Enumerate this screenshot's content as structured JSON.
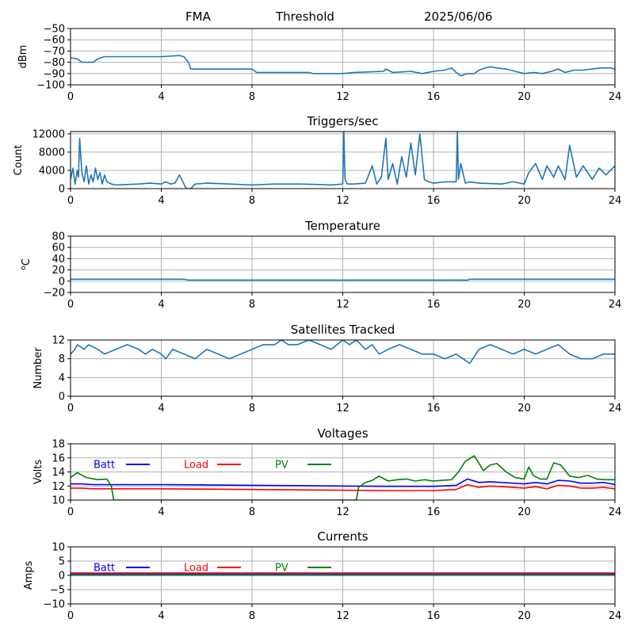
{
  "header": {
    "station": "FMA",
    "mode": "Threshold",
    "date": "2025/06/06"
  },
  "chart_data": [
    {
      "type": "line",
      "title": "",
      "xlabel": "",
      "ylabel": "dBm",
      "xlim": [
        0,
        24
      ],
      "ylim": [
        -100,
        -50
      ],
      "xticks": [
        0,
        4,
        8,
        12,
        16,
        20,
        24
      ],
      "yticks": [
        -50,
        -60,
        -70,
        -80,
        -90,
        -100
      ],
      "grid": true,
      "series": [
        {
          "color": "#1f77b4",
          "x": [
            0,
            0.3,
            0.5,
            1.0,
            1.2,
            1.5,
            4.0,
            4.8,
            5.0,
            5.2,
            5.3,
            8.0,
            8.2,
            10.5,
            10.7,
            12.0,
            12.5,
            13.8,
            13.9,
            14.2,
            15.0,
            15.5,
            16.0,
            16.5,
            16.8,
            17.0,
            17.2,
            17.5,
            17.8,
            18.0,
            18.3,
            18.5,
            18.8,
            19.2,
            19.6,
            20.0,
            20.4,
            20.8,
            21.2,
            21.5,
            21.8,
            22.2,
            22.6,
            23.0,
            23.4,
            23.8,
            24.0
          ],
          "y": [
            -76,
            -77,
            -80,
            -80,
            -77,
            -75,
            -75,
            -74,
            -75,
            -80,
            -86,
            -86,
            -89,
            -89,
            -90,
            -90,
            -89,
            -88,
            -86,
            -89,
            -88,
            -90,
            -88,
            -87,
            -85,
            -89,
            -92,
            -90,
            -90,
            -87,
            -85,
            -84,
            -85,
            -86,
            -88,
            -90,
            -89,
            -90,
            -88,
            -86,
            -89,
            -87,
            -87,
            -86,
            -85,
            -85,
            -86
          ]
        }
      ]
    },
    {
      "type": "line",
      "title": "Triggers/sec",
      "xlabel": "",
      "ylabel": "Count",
      "xlim": [
        0,
        24
      ],
      "ylim": [
        0,
        12500
      ],
      "xticks": [
        0,
        4,
        8,
        12,
        16,
        20,
        24
      ],
      "yticks": [
        0,
        4000,
        8000,
        12000
      ],
      "grid": true,
      "series": [
        {
          "color": "#1f77b4",
          "x": [
            0,
            0.1,
            0.2,
            0.3,
            0.35,
            0.4,
            0.5,
            0.6,
            0.7,
            0.8,
            0.9,
            1.0,
            1.1,
            1.2,
            1.3,
            1.4,
            1.5,
            1.6,
            1.8,
            2.0,
            2.5,
            3.0,
            3.5,
            4.0,
            4.2,
            4.4,
            4.6,
            4.8,
            5.0,
            5.1,
            5.3,
            5.5,
            6.0,
            7.0,
            8.0,
            9.0,
            10.0,
            11.0,
            11.5,
            12.0,
            12.05,
            12.1,
            12.2,
            12.5,
            13.0,
            13.3,
            13.5,
            13.7,
            13.9,
            14.0,
            14.2,
            14.4,
            14.6,
            14.8,
            15.0,
            15.2,
            15.4,
            15.6,
            15.8,
            16.0,
            16.5,
            17.0,
            17.05,
            17.1,
            17.2,
            17.4,
            17.6,
            18.0,
            19.0,
            19.5,
            20.0,
            20.2,
            20.5,
            20.8,
            21.0,
            21.3,
            21.5,
            21.8,
            22.0,
            22.3,
            22.6,
            23.0,
            23.3,
            23.6,
            24.0
          ],
          "y": [
            2000,
            4500,
            1000,
            4000,
            2500,
            11000,
            3500,
            1500,
            5000,
            1000,
            3000,
            1500,
            4500,
            2000,
            3500,
            1000,
            3000,
            1500,
            1000,
            800,
            900,
            1000,
            1200,
            1000,
            1500,
            1000,
            1200,
            3000,
            1000,
            0,
            0,
            1000,
            1200,
            1000,
            800,
            1000,
            1000,
            900,
            800,
            1000,
            12500,
            2000,
            1000,
            1000,
            1200,
            5000,
            1000,
            2500,
            11000,
            2000,
            5500,
            1000,
            7000,
            2500,
            10000,
            3000,
            12000,
            2000,
            1500,
            1200,
            1500,
            1500,
            12500,
            2000,
            5500,
            1200,
            1500,
            1200,
            1000,
            1500,
            1000,
            3500,
            5500,
            2000,
            5000,
            2500,
            5000,
            2000,
            9500,
            2500,
            5000,
            2000,
            4500,
            3000,
            5000
          ]
        }
      ]
    },
    {
      "type": "line",
      "title": "Temperature",
      "xlabel": "",
      "ylabel": "°C",
      "ylabel_sup": "o",
      "ylabel_base": "C",
      "xlim": [
        0,
        24
      ],
      "ylim": [
        -20,
        80
      ],
      "xticks": [
        0,
        4,
        8,
        12,
        16,
        20,
        24
      ],
      "yticks": [
        80,
        60,
        40,
        20,
        0,
        -20
      ],
      "grid": true,
      "series": [
        {
          "color": "#1f77b4",
          "x": [
            0,
            5.0,
            5.2,
            17.5,
            17.6,
            24
          ],
          "y": [
            3.5,
            3.5,
            2,
            2,
            3.5,
            3.5
          ]
        }
      ]
    },
    {
      "type": "line",
      "title": "Satellites Tracked",
      "xlabel": "",
      "ylabel": "Number",
      "xlim": [
        0,
        24
      ],
      "ylim": [
        0,
        12
      ],
      "xticks": [
        0,
        4,
        8,
        12,
        16,
        20,
        24
      ],
      "yticks": [
        0,
        4,
        8,
        12
      ],
      "grid": true,
      "series": [
        {
          "color": "#1f77b4",
          "x": [
            0,
            0.2,
            0.3,
            0.6,
            0.8,
            1.2,
            1.5,
            2.0,
            2.5,
            3.0,
            3.3,
            3.6,
            4.0,
            4.2,
            4.5,
            5.0,
            5.5,
            6.0,
            6.5,
            7.0,
            7.5,
            8.0,
            8.5,
            9.0,
            9.3,
            9.6,
            10.0,
            10.5,
            11.0,
            11.5,
            12.0,
            12.3,
            12.6,
            13.0,
            13.3,
            13.6,
            14.0,
            14.5,
            15.0,
            15.5,
            16.0,
            16.5,
            17.0,
            17.3,
            17.6,
            18.0,
            18.5,
            19.0,
            19.5,
            20.0,
            20.5,
            21.0,
            21.5,
            22.0,
            22.5,
            23.0,
            23.5,
            24.0
          ],
          "y": [
            9,
            10,
            11,
            10,
            11,
            10,
            9,
            10,
            11,
            10,
            9,
            10,
            9,
            8,
            10,
            9,
            8,
            10,
            9,
            8,
            9,
            10,
            11,
            11,
            12,
            11,
            11,
            12,
            11,
            10,
            12,
            11,
            12,
            10,
            11,
            9,
            10,
            11,
            10,
            9,
            9,
            8,
            9,
            8,
            7,
            10,
            11,
            10,
            9,
            10,
            9,
            10,
            11,
            9,
            8,
            8,
            9,
            9
          ]
        }
      ]
    },
    {
      "type": "line",
      "title": "Voltages",
      "xlabel": "",
      "ylabel": "Volts",
      "xlim": [
        0,
        24
      ],
      "ylim": [
        10,
        18
      ],
      "xticks": [
        0,
        4,
        8,
        12,
        16,
        20,
        24
      ],
      "yticks": [
        10,
        12,
        14,
        16,
        18
      ],
      "grid": true,
      "legend": "top-left, inline",
      "series": [
        {
          "name": "Batt",
          "color": "#0000ff",
          "x": [
            0,
            0.5,
            1,
            2,
            4,
            6,
            8,
            10,
            12,
            14,
            16,
            17,
            17.5,
            18,
            18.5,
            19,
            20,
            20.5,
            21,
            21.5,
            22,
            22.5,
            23,
            23.5,
            24
          ],
          "y": [
            12.3,
            12.3,
            12.2,
            12.2,
            12.2,
            12.15,
            12.1,
            12.05,
            12.0,
            11.95,
            11.95,
            12.1,
            13.0,
            12.5,
            12.6,
            12.5,
            12.3,
            12.5,
            12.3,
            12.8,
            12.7,
            12.4,
            12.4,
            12.5,
            12.2
          ]
        },
        {
          "name": "Load",
          "color": "#ff0000",
          "x": [
            0,
            0.5,
            1,
            2,
            4,
            6,
            8,
            10,
            12,
            14,
            16,
            17,
            17.5,
            18,
            18.5,
            19,
            20,
            20.5,
            21,
            21.5,
            22,
            22.5,
            23,
            23.5,
            24
          ],
          "y": [
            11.7,
            11.7,
            11.6,
            11.6,
            11.6,
            11.55,
            11.5,
            11.45,
            11.4,
            11.35,
            11.35,
            11.5,
            12.2,
            11.8,
            12.0,
            11.9,
            11.7,
            11.9,
            11.6,
            12.1,
            12.0,
            11.7,
            11.7,
            11.8,
            11.6
          ]
        },
        {
          "name": "PV",
          "color": "#008000",
          "x": [
            0,
            0.3,
            0.7,
            1.2,
            1.6,
            1.8,
            1.9,
            12.6,
            12.7,
            13.0,
            13.3,
            13.6,
            14.0,
            14.4,
            14.8,
            15.2,
            15.6,
            16.0,
            16.4,
            16.8,
            17.1,
            17.4,
            17.8,
            18.2,
            18.5,
            18.8,
            19.2,
            19.6,
            20.0,
            20.2,
            20.4,
            20.7,
            21.0,
            21.3,
            21.6,
            22.0,
            22.4,
            22.8,
            23.2,
            23.6,
            24.0
          ],
          "y": [
            13.2,
            13.9,
            13.2,
            12.9,
            13.0,
            12.0,
            10.0,
            10.0,
            11.8,
            12.5,
            12.8,
            13.4,
            12.7,
            12.9,
            13.0,
            12.7,
            12.9,
            12.7,
            12.8,
            12.9,
            14.0,
            15.5,
            16.3,
            14.2,
            15.0,
            15.2,
            14.0,
            13.2,
            13.0,
            14.7,
            13.5,
            13.0,
            13.0,
            15.3,
            15.0,
            13.4,
            13.2,
            13.5,
            13.0,
            12.9,
            12.9
          ]
        }
      ]
    },
    {
      "type": "line",
      "title": "Currents",
      "xlabel": "",
      "ylabel": "Amps",
      "xlim": [
        0,
        24
      ],
      "ylim": [
        -10,
        10
      ],
      "xticks": [
        0,
        4,
        8,
        12,
        16,
        20,
        24
      ],
      "yticks": [
        10,
        5,
        0,
        -5,
        -10
      ],
      "grid": true,
      "legend": "top-left, inline",
      "series": [
        {
          "name": "Batt",
          "color": "#0000ff",
          "x": [
            0,
            24
          ],
          "y": [
            0.5,
            0.5
          ]
        },
        {
          "name": "Load",
          "color": "#ff0000",
          "x": [
            0,
            24
          ],
          "y": [
            0.8,
            0.8
          ]
        },
        {
          "name": "PV",
          "color": "#008000",
          "x": [
            0,
            24
          ],
          "y": [
            0.0,
            0.0
          ]
        }
      ]
    }
  ]
}
